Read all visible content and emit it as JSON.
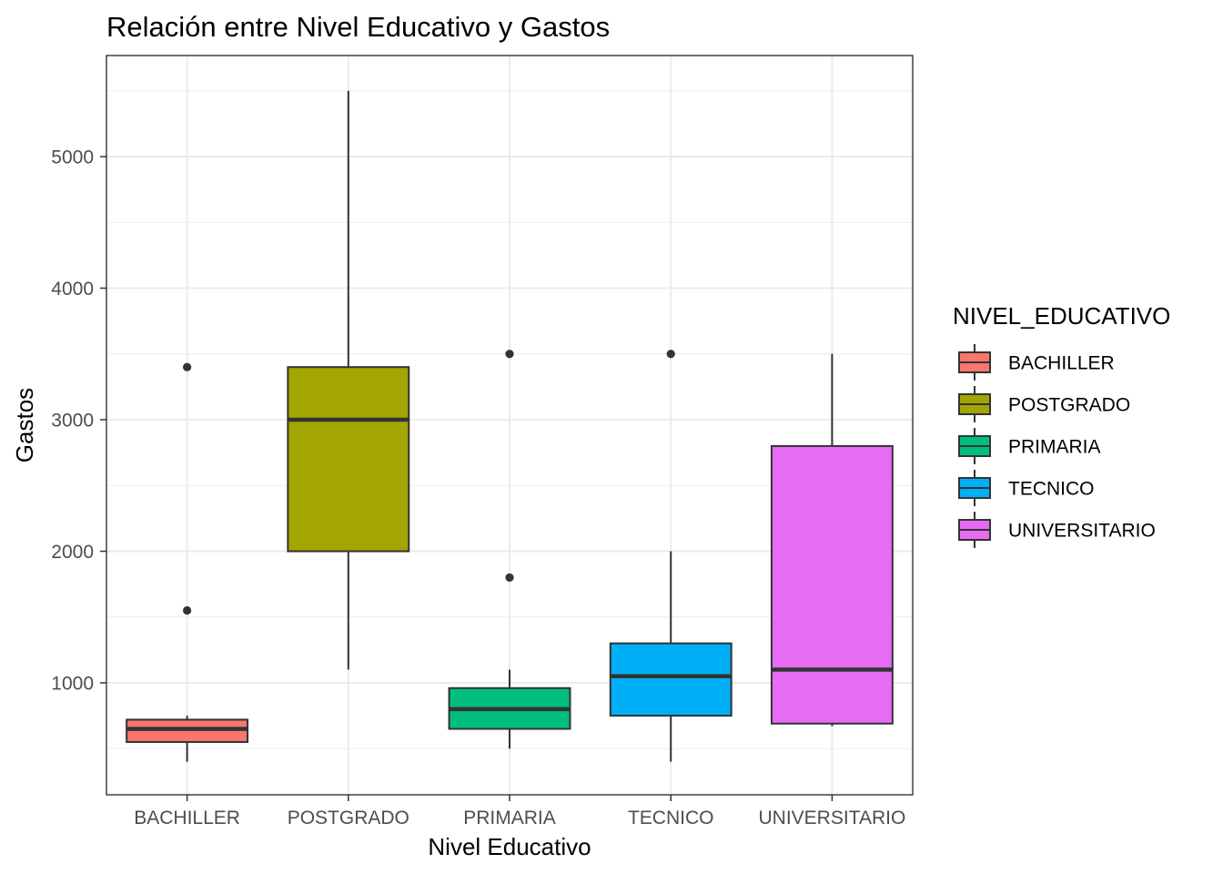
{
  "chart_data": {
    "type": "boxplot",
    "title": "Relación entre Nivel Educativo y Gastos",
    "xlabel": "Nivel Educativo",
    "ylabel": "Gastos",
    "ylim": [
      150,
      5500
    ],
    "y_ticks": [
      1000,
      2000,
      3000,
      4000,
      5000
    ],
    "y_tick_labels": [
      "1000",
      "2000",
      "3000",
      "4000",
      "5000"
    ],
    "grid": true,
    "legend_title": "NIVEL_EDUCATIVO",
    "legend_position": "right",
    "categories": [
      "BACHILLER",
      "POSTGRADO",
      "PRIMARIA",
      "TECNICO",
      "UNIVERSITARIO"
    ],
    "boxes": [
      {
        "category": "BACHILLER",
        "color": "#F8766D",
        "lower_whisker": 400,
        "q1": 550,
        "median": 650,
        "q3": 720,
        "upper_whisker": 750,
        "outliers": [
          1550,
          3400
        ]
      },
      {
        "category": "POSTGRADO",
        "color": "#A3A500",
        "lower_whisker": 1100,
        "q1": 2000,
        "median": 3000,
        "q3": 3400,
        "upper_whisker": 5500,
        "outliers": []
      },
      {
        "category": "PRIMARIA",
        "color": "#00BF7D",
        "lower_whisker": 500,
        "q1": 650,
        "median": 800,
        "q3": 960,
        "upper_whisker": 1100,
        "outliers": [
          1800,
          3500
        ]
      },
      {
        "category": "TECNICO",
        "color": "#00B0F6",
        "lower_whisker": 400,
        "q1": 750,
        "median": 1050,
        "q3": 1300,
        "upper_whisker": 2000,
        "outliers": [
          3500
        ]
      },
      {
        "category": "UNIVERSITARIO",
        "color": "#E76BF3",
        "lower_whisker": 670,
        "q1": 690,
        "median": 1100,
        "q3": 2800,
        "upper_whisker": 3500,
        "outliers": []
      }
    ]
  }
}
